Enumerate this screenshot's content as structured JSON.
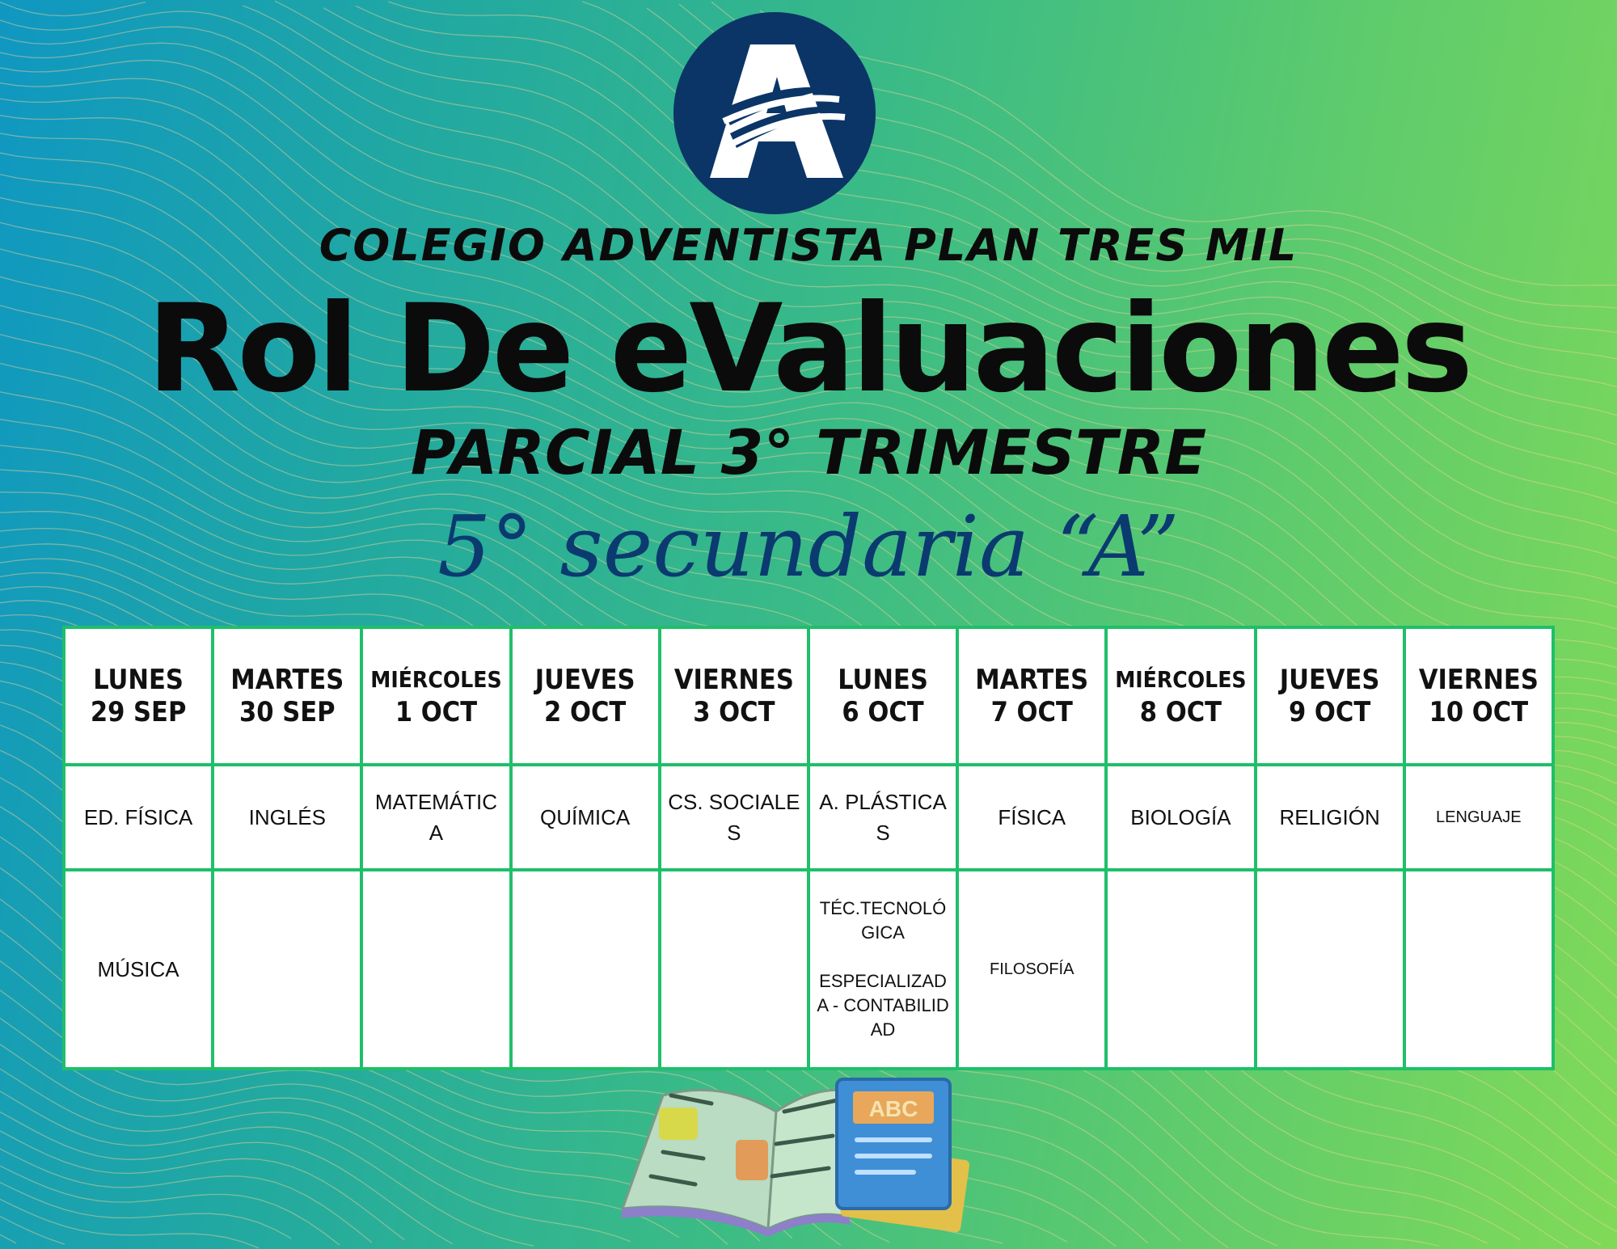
{
  "header": {
    "school": "COLEGIO ADVENTISTA PLAN TRES MIL",
    "title": "Rol De eValuaciones",
    "subtitle": "PARCIAL 3° TRIMESTRE",
    "grade": "5° secundaria “A”",
    "logo_letter": "A"
  },
  "colors": {
    "logo_bg": "#0b3566",
    "table_border": "#1fbf6a",
    "grade_text": "#0b3a70"
  },
  "schedule": {
    "columns": [
      {
        "day": "LUNES",
        "date": "29 SEP",
        "row1": "ED. FÍSICA",
        "row2": "MÚSICA"
      },
      {
        "day": "MARTES",
        "date": "30 SEP",
        "row1": "INGLÉS",
        "row2": ""
      },
      {
        "day": "MIÉRCOLES",
        "date": "1 OCT",
        "row1": "MATEMÁTICA",
        "row2": ""
      },
      {
        "day": "JUEVES",
        "date": "2 OCT",
        "row1": "QUÍMICA",
        "row2": ""
      },
      {
        "day": "VIERNES",
        "date": "3 OCT",
        "row1": "CS. SOCIALES",
        "row2": ""
      },
      {
        "day": "LUNES",
        "date": "6 OCT",
        "row1": "A. PLÁSTICAS",
        "row2": "TÉC.TECNOLÓGICA\n\nESPECIALIZADA - CONTABILIDAD"
      },
      {
        "day": "MARTES",
        "date": "7 OCT",
        "row1": "FÍSICA",
        "row2": "FILOSOFÍA"
      },
      {
        "day": "MIÉRCOLES",
        "date": "8 OCT",
        "row1": "BIOLOGÍA",
        "row2": ""
      },
      {
        "day": "JUEVES",
        "date": "9 OCT",
        "row1": "RELIGIÓN",
        "row2": ""
      },
      {
        "day": "VIERNES",
        "date": "10 OCT",
        "row1": "LENGUAJE",
        "row2": ""
      }
    ]
  },
  "illustration": {
    "book_label": "ABC"
  }
}
